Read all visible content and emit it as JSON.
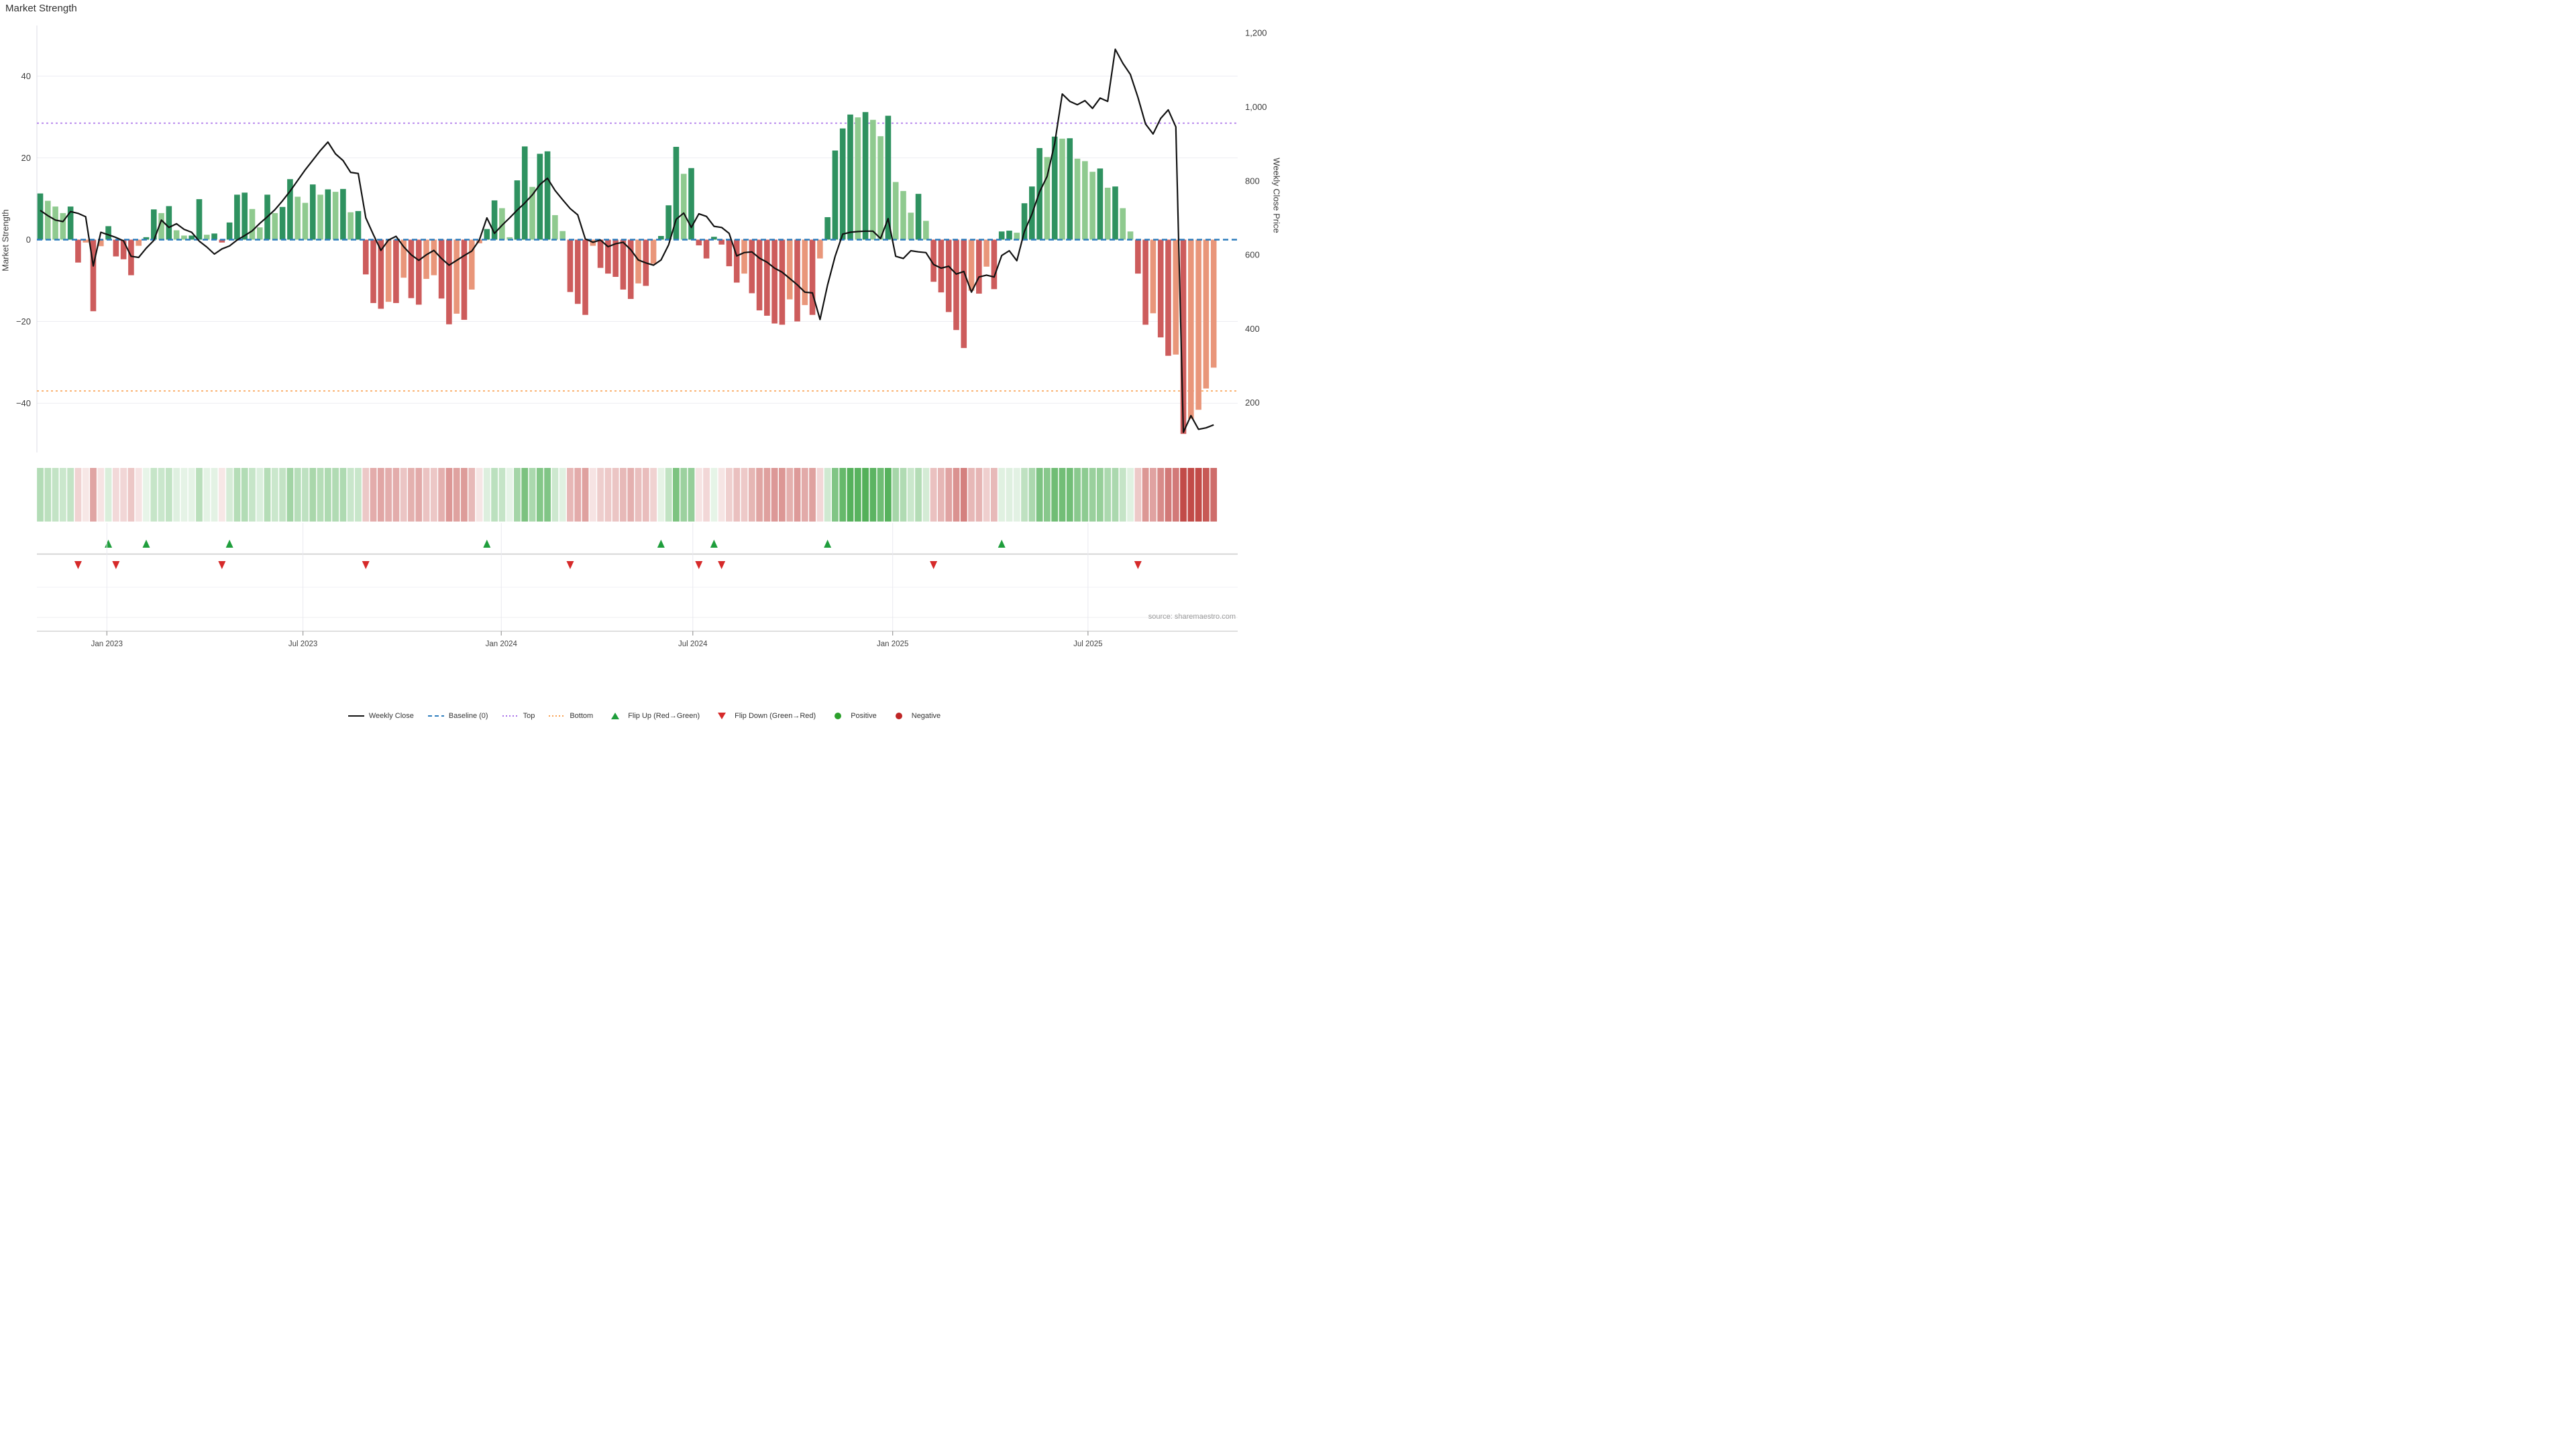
{
  "title": "Market Strength",
  "source": "source: sharemaestro.com",
  "axes": {
    "y_left_title": "Market Strength",
    "y_right_title": "Weekly Close Price"
  },
  "legend": {
    "items": [
      {
        "id": "weekly-close",
        "label": "Weekly Close",
        "glyph": "solid-line",
        "color": "#111111"
      },
      {
        "id": "baseline",
        "label": "Baseline (0)",
        "glyph": "dashed-line",
        "color": "#2d7dbd"
      },
      {
        "id": "top",
        "label": "Top",
        "glyph": "dotted-line",
        "color": "#a86fe8"
      },
      {
        "id": "bottom",
        "label": "Bottom",
        "glyph": "dotted-line",
        "color": "#f9a050"
      },
      {
        "id": "flip-up",
        "label": "Flip Up (Red→Green)",
        "glyph": "triangle-up",
        "color": "#1f9e3c"
      },
      {
        "id": "flip-down",
        "label": "Flip Down (Green→Red)",
        "glyph": "triangle-down",
        "color": "#d62a2a"
      },
      {
        "id": "positive",
        "label": "Positive",
        "glyph": "dot",
        "color": "#2ca02c"
      },
      {
        "id": "negative",
        "label": "Negative",
        "glyph": "dot",
        "color": "#bf2626"
      }
    ]
  },
  "colors": {
    "bar_pos_dark": "#2f9260",
    "bar_pos_light": "#8fca8f",
    "bar_neg_dark": "#cd5c5c",
    "bar_neg_light": "#e9967a",
    "price_line": "#111111",
    "baseline": "#2d7dbd",
    "top_line": "#a86fe8",
    "bottom_line": "#f9a050",
    "flip_up": "#1f9e3c",
    "flip_down": "#d62a2a",
    "heat_green": "#4fae55",
    "heat_red": "#c24b48",
    "grid": "#ededf2",
    "spine": "#c9c9c9",
    "tick_text": "#3d3d3d"
  },
  "chart_data": {
    "type": "bar",
    "title": "Market Strength",
    "xlabel": "",
    "ylabel": "Market Strength",
    "ylabel_right": "Weekly Close Price",
    "grid": true,
    "legend_position": "bottom-center",
    "weeks": 156,
    "y_left": {
      "tick_values": [
        40,
        20,
        0,
        -20,
        -40
      ],
      "tick_labels": [
        "40",
        "20",
        "0",
        "−20",
        "−40"
      ],
      "ylim": [
        -52.5,
        52.5
      ]
    },
    "y_right": {
      "tick_values": [
        1200,
        1000,
        800,
        600,
        400,
        200
      ],
      "tick_labels": [
        "1,200",
        "1,000",
        "800",
        "600",
        "400",
        "200"
      ],
      "price_at_baseline": 641,
      "price_per_strength_unit": 11.06
    },
    "x_ticks": [
      {
        "label": "Jan 2023",
        "week": 8.8
      },
      {
        "label": "Jul 2023",
        "week": 34.7
      },
      {
        "label": "Jan 2024",
        "week": 60.9
      },
      {
        "label": "Jul 2024",
        "week": 86.2
      },
      {
        "label": "Jan 2025",
        "week": 112.6
      },
      {
        "label": "Jul 2025",
        "week": 138.4
      }
    ],
    "reference_lines": {
      "baseline": 0,
      "top": 28.5,
      "bottom": -37
    },
    "series": [
      {
        "name": "Market Strength",
        "type": "bar",
        "values": [
          11.3,
          9.5,
          8.1,
          6.5,
          8.1,
          -5.6,
          -0.7,
          -17.5,
          -1.6,
          3.3,
          -4.1,
          -4.8,
          -8.7,
          -1.5,
          0.6,
          7.4,
          6.5,
          8.2,
          2.3,
          1.0,
          1.0,
          9.9,
          1.2,
          1.5,
          -0.7,
          4.2,
          11.0,
          11.5,
          7.5,
          3.0,
          11.0,
          6.5,
          8.0,
          14.8,
          10.5,
          9.0,
          13.5,
          11.0,
          12.3,
          11.7,
          12.4,
          6.7,
          7.0,
          -8.5,
          -15.5,
          -16.9,
          -15.2,
          -15.5,
          -9.3,
          -14.3,
          -15.9,
          -9.6,
          -8.7,
          -14.4,
          -20.7,
          -18.1,
          -19.6,
          -12.2,
          -0.9,
          2.6,
          9.6,
          7.7,
          0.6,
          14.5,
          22.8,
          12.9,
          21.0,
          21.6,
          6.0,
          2.1,
          -12.8,
          -15.7,
          -18.4,
          -1.5,
          -6.9,
          -8.3,
          -9.1,
          -12.2,
          -14.5,
          -10.7,
          -11.3,
          -5.9,
          0.9,
          8.4,
          22.7,
          16.1,
          17.5,
          -1.4,
          -4.6,
          0.7,
          -1.2,
          -6.5,
          -10.5,
          -8.3,
          -13.1,
          -17.3,
          -18.6,
          -20.5,
          -20.8,
          -14.6,
          -20.0,
          -16.0,
          -18.4,
          -4.6,
          5.5,
          21.8,
          27.2,
          30.6,
          29.9,
          31.2,
          29.3,
          25.3,
          30.3,
          14.1,
          11.9,
          6.6,
          11.2,
          4.6,
          -10.3,
          -12.9,
          -17.7,
          -22.1,
          -26.5,
          -12.5,
          -13.2,
          -6.6,
          -12.1,
          2.0,
          2.2,
          1.7,
          8.9,
          13.0,
          22.4,
          20.2,
          25.2,
          24.7,
          24.8,
          19.8,
          19.2,
          16.6,
          17.4,
          12.7,
          13.0,
          7.7,
          2.0,
          -8.3,
          -20.8,
          -18.0,
          -23.9,
          -28.4,
          -28.1,
          -47.5,
          -43.8,
          -41.6,
          -36.4,
          -31.3
        ]
      },
      {
        "name": "Weekly Close",
        "type": "line",
        "values": [
          720,
          706,
          694,
          690,
          717,
          712,
          703,
          570,
          661,
          654,
          647,
          638,
          596,
          593,
          618,
          639,
          694,
          674,
          684,
          669,
          661,
          637,
          621,
          602,
          616,
          624,
          640,
          652,
          665,
          685,
          703,
          722,
          746,
          772,
          801,
          830,
          856,
          882,
          905,
          873,
          855,
          823,
          820,
          700,
          655,
          612,
          640,
          650,
          622,
          600,
          585,
          600,
          612,
          590,
          572,
          585,
          598,
          610,
          640,
          700,
          658,
          680,
          700,
          721,
          740,
          762,
          790,
          807,
          774,
          749,
          725,
          708,
          643,
          634,
          640,
          622,
          630,
          634,
          614,
          586,
          578,
          572,
          586,
          627,
          696,
          713,
          674,
          711,
          704,
          677,
          674,
          658,
          597,
          606,
          608,
          591,
          580,
          564,
          553,
          536,
          519,
          499,
          497,
          425,
          518,
          596,
          656,
          661,
          663,
          664,
          664,
          644,
          698,
          596,
          590,
          611,
          608,
          606,
          574,
          564,
          569,
          548,
          555,
          499,
          540,
          545,
          540,
          598,
          611,
          584,
          663,
          710,
          770,
          812,
          901,
          1035,
          1015,
          1006,
          1017,
          996,
          1024,
          1015,
          1156,
          1118,
          1088,
          1026,
          954,
          927,
          969,
          992,
          946,
          120,
          165,
          128,
          132,
          140
        ]
      }
    ],
    "bar_shading_rule": "dark shade when strength moves further from zero than previous week (up for green, down for red); light shade otherwise",
    "flip_markers_rule": "up-triangle at weeks where strength flips negative to positive; down-triangle where it flips positive to negative",
    "heatmap_strip": "one cell per week, green tint for positive strength, red tint for negative, intensity proportional to magnitude"
  }
}
